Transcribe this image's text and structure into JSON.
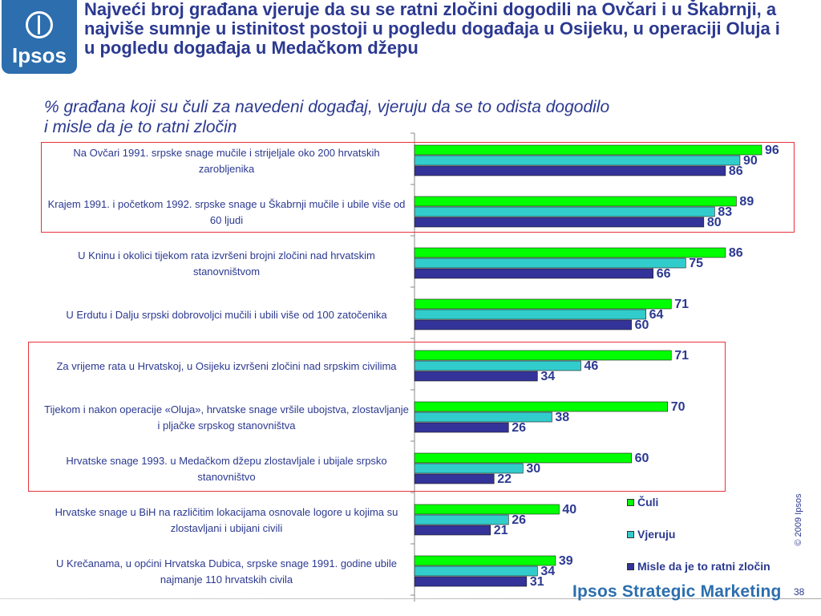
{
  "logo": {
    "brand": "Ipsos"
  },
  "header": {
    "title": "Najveći broj građana vjeruje da su se ratni zločini dogodili na Ovčari i u Škabrnji, a najviše sumnje u istinitost postoji u pogledu događaja u Osijeku, u operaciji Oluja i u pogledu događaja u Medačkom džepu",
    "subtitle_line1": "% građana koji su čuli za navedeni događaj, vjeruju da se to odista dogodilo",
    "subtitle_line2": "i misle da je to ratni zločin"
  },
  "chart_data": {
    "type": "bar",
    "orientation": "horizontal",
    "categories": [
      "Na Ovčari 1991. srpske snage mučile i strijeljale oko 200 hrvatskih zarobljenika",
      "Krajem 1991. i početkom 1992. srpske snage u Škabrnji mučile i ubile više od 60 ljudi",
      "U Kninu i okolici tijekom rata izvršeni brojni zločini nad hrvatskim stanovništvom",
      "U Erdutu i Dalju srpski dobrovoljci mučili i ubili više od 100 zatočenika",
      "Za vrijeme rata u Hrvatskoj, u Osijeku izvršeni zločini nad srpskim civilima",
      "Tijekom i nakon operacije «Oluja», hrvatske snage vršile ubojstva, zlostavljanje i pljačke srpskog stanovništva",
      "Hrvatske snage 1993. u Medačkom džepu zlostavljale i ubijale srpsko stanovništvo",
      "Hrvatske snage u BiH na različitim lokacijama osnovale logore u kojima su zlostavljani i ubijani civili",
      "U Krečanama, u općini Hrvatska Dubica, srpske snage 1991. godine ubile najmanje 110 hrvatskih civila"
    ],
    "series": [
      {
        "name": "Čuli",
        "color": "#00ff00",
        "values": [
          96,
          89,
          86,
          71,
          71,
          70,
          60,
          40,
          39
        ]
      },
      {
        "name": "Vjeruju",
        "color": "#33cccc",
        "values": [
          90,
          83,
          75,
          64,
          46,
          38,
          30,
          26,
          34
        ]
      },
      {
        "name": "Misle da je to ratni zločin",
        "color": "#333399",
        "values": [
          86,
          80,
          66,
          60,
          34,
          26,
          22,
          21,
          31
        ]
      }
    ],
    "xlim": [
      0,
      100
    ],
    "highlighted_groups": [
      [
        0,
        1
      ],
      [
        4,
        5,
        6
      ]
    ],
    "legend_position": "bottom-right"
  },
  "footer": {
    "copyright": "© 2009 Ipsos",
    "brand": "Ipsos Strategic Marketing",
    "page_number": "38"
  }
}
